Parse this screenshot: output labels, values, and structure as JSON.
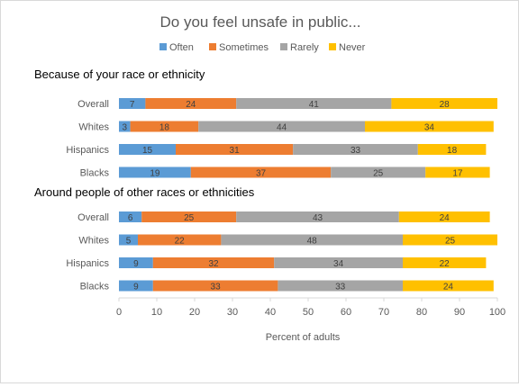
{
  "chart_data": {
    "type": "bar",
    "orientation": "horizontal",
    "stacked": true,
    "title": "Do you feel unsafe in public...",
    "xlabel": "Percent of adults",
    "xlim": [
      0,
      100
    ],
    "xticks": [
      0,
      10,
      20,
      30,
      40,
      50,
      60,
      70,
      80,
      90,
      100
    ],
    "legend_position": "top",
    "grid": false,
    "series": [
      {
        "name": "Often",
        "color": "#5B9BD5"
      },
      {
        "name": "Sometimes",
        "color": "#ED7D31"
      },
      {
        "name": "Rarely",
        "color": "#A5A5A5"
      },
      {
        "name": "Never",
        "color": "#FFC000"
      }
    ],
    "groups": [
      {
        "label": "Because of your race or ethnicity",
        "rows": [
          {
            "category": "Overall",
            "values": [
              7,
              24,
              41,
              28
            ]
          },
          {
            "category": "Whites",
            "values": [
              3,
              18,
              44,
              34
            ]
          },
          {
            "category": "Hispanics",
            "values": [
              15,
              31,
              33,
              18
            ]
          },
          {
            "category": "Blacks",
            "values": [
              19,
              37,
              25,
              17
            ]
          }
        ]
      },
      {
        "label": "Around people of other races or ethnicities",
        "rows": [
          {
            "category": "Overall",
            "values": [
              6,
              25,
              43,
              24
            ]
          },
          {
            "category": "Whites",
            "values": [
              5,
              22,
              48,
              25
            ]
          },
          {
            "category": "Hispanics",
            "values": [
              9,
              32,
              34,
              22
            ]
          },
          {
            "category": "Blacks",
            "values": [
              9,
              33,
              33,
              24
            ]
          }
        ]
      }
    ]
  }
}
